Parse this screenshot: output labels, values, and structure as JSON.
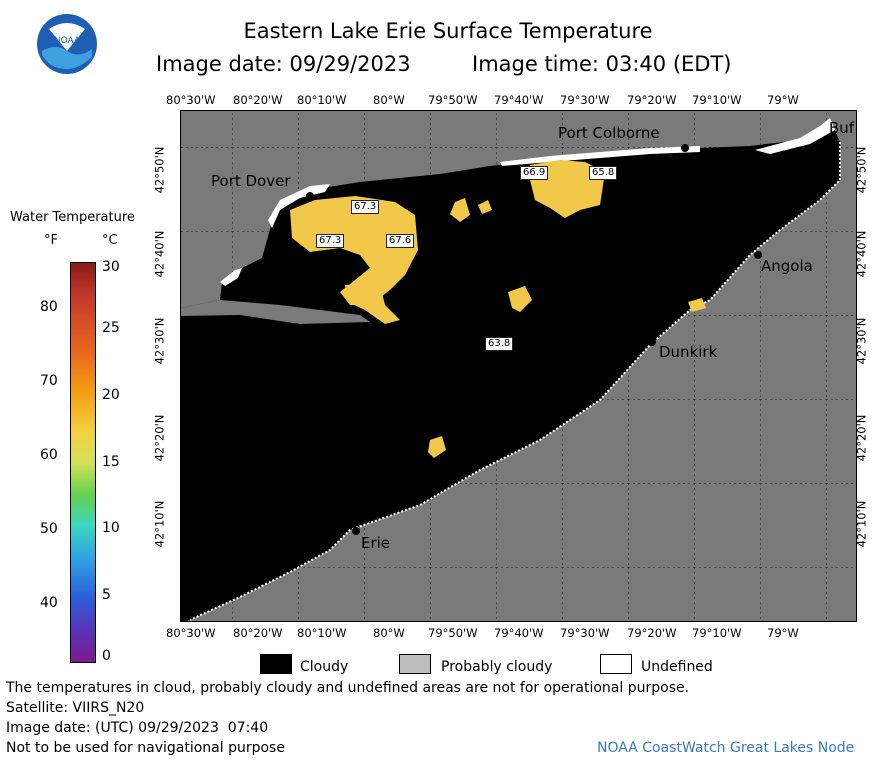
{
  "title": "Eastern Lake Erie Surface Temperature",
  "subtitle": {
    "date": "Image date: 09/29/2023",
    "time": "Image time: 03:40 (EDT)"
  },
  "logo_text": "NOAA",
  "lon_labels": [
    "80°30'W",
    "80°20'W",
    "80°10'W",
    "80°W",
    "79°50'W",
    "79°40'W",
    "79°30'W",
    "79°20'W",
    "79°10'W",
    "79°W"
  ],
  "lat_labels": [
    "42°50'N",
    "42°40'N",
    "42°30'N",
    "42°20'N",
    "42°10'N"
  ],
  "cities": {
    "port_dover": "Port Dover",
    "port_colborne": "Port Colborne",
    "buffalo": "Buf",
    "angola": "Angola",
    "dunkirk": "Dunkirk",
    "erie": "Erie"
  },
  "temp_labels": [
    "67.3",
    "67.3",
    "67.6",
    "66.9",
    "65.8",
    "63.8"
  ],
  "scale": {
    "title": "Water Temperature",
    "unit_f": "°F",
    "unit_c": "°C",
    "f_ticks": [
      "80",
      "70",
      "60",
      "50",
      "40"
    ],
    "c_ticks": [
      "30",
      "25",
      "20",
      "15",
      "10",
      "5",
      "0"
    ]
  },
  "legend": {
    "cloudy": "Cloudy",
    "probably_cloudy": "Probably cloudy",
    "undefined": "Undefined"
  },
  "footer": {
    "disclaimer": "The temperatures in cloud, probably cloudy and undefined areas are not for operational purpose.",
    "satellite": "Satellite: VIIRS_N20",
    "utc": "Image date: (UTC) 09/29/2023  07:40",
    "nav": "Not to be used for navigational purpose",
    "credit": "NOAA CoastWatch Great Lakes Node"
  },
  "colors": {
    "land": "#7a7a7a",
    "cloud": "#000000",
    "warm_water": "#f2c84b",
    "credit": "#3a78c8"
  }
}
